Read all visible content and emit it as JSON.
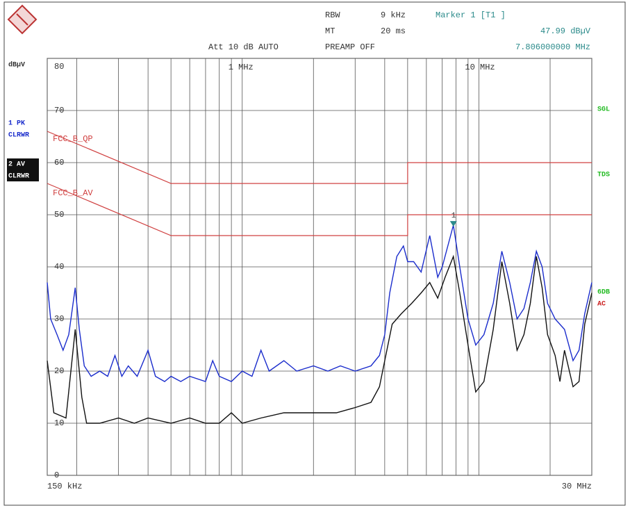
{
  "chart_data": {
    "type": "line",
    "header": {
      "rbw_label": "RBW",
      "rbw": "9 kHz",
      "mt_label": "MT",
      "mt": "20 ms",
      "att": "Att 10 dB AUTO",
      "preamp": "PREAMP OFF"
    },
    "marker": {
      "title": "Marker 1 [T1 ]",
      "number": "1",
      "x": 7.806,
      "y": 47.99,
      "y_label": "47.99 dBµV",
      "x_label": "7.806000000 MHz",
      "color": "#2a8a8a"
    },
    "y_unit": "dBµV",
    "side_labels": {
      "sgl": "SGL",
      "tds": "TDS",
      "db6": "6DB",
      "ac": "AC"
    },
    "trace_mode": "CLRWR",
    "xscale": "log",
    "xlim": [
      0.15,
      30
    ],
    "xticks": [
      {
        "value": 0.15,
        "label": "150 kHz"
      },
      {
        "value": 1,
        "label": "1 MHz"
      },
      {
        "value": 10,
        "label": "10 MHz"
      },
      {
        "value": 30,
        "label": "30 MHz"
      }
    ],
    "xgrid": [
      0.2,
      0.3,
      0.4,
      0.5,
      0.6,
      0.7,
      0.8,
      0.9,
      2,
      3,
      4,
      5,
      6,
      7,
      8,
      9,
      20
    ],
    "ylim": [
      0,
      80
    ],
    "yticks": [
      0,
      10,
      20,
      30,
      40,
      50,
      60,
      70,
      80
    ],
    "grid": true,
    "series": [
      {
        "name": "FCC_B_QP",
        "color": "#d04040",
        "x": [
          0.15,
          0.5,
          5,
          5,
          30
        ],
        "values": [
          66,
          56,
          56,
          60,
          60
        ]
      },
      {
        "name": "FCC_B_AV",
        "color": "#d04040",
        "x": [
          0.15,
          0.5,
          5,
          5,
          30
        ],
        "values": [
          56,
          46,
          46,
          50,
          50
        ]
      },
      {
        "name": "1 PK",
        "color": "#1a2ccc",
        "x": [
          0.15,
          0.155,
          0.165,
          0.175,
          0.185,
          0.197,
          0.205,
          0.215,
          0.23,
          0.25,
          0.27,
          0.29,
          0.31,
          0.33,
          0.36,
          0.4,
          0.43,
          0.47,
          0.5,
          0.55,
          0.6,
          0.7,
          0.75,
          0.8,
          0.9,
          1.0,
          1.1,
          1.2,
          1.3,
          1.5,
          1.7,
          2.0,
          2.3,
          2.6,
          3.0,
          3.5,
          3.8,
          4.0,
          4.2,
          4.5,
          4.8,
          5.0,
          5.3,
          5.7,
          6.2,
          6.7,
          7.0,
          7.8,
          8.3,
          9.0,
          9.7,
          10.5,
          11.5,
          12.5,
          13.5,
          14.5,
          15.5,
          16.5,
          17.5,
          18.5,
          19.5,
          21,
          23,
          25,
          26.5,
          28,
          30
        ],
        "values": [
          37,
          30,
          27,
          24,
          27,
          36,
          28,
          21,
          19,
          20,
          19,
          23,
          19,
          21,
          19,
          24,
          19,
          18,
          19,
          18,
          19,
          18,
          22,
          19,
          18,
          20,
          19,
          24,
          20,
          22,
          20,
          21,
          20,
          21,
          20,
          21,
          23,
          27,
          35,
          42,
          44,
          41,
          41,
          39,
          46,
          38,
          40,
          48,
          40,
          30,
          25,
          27,
          33,
          43,
          37,
          30,
          32,
          37,
          43,
          40,
          33,
          30,
          28,
          22,
          24,
          31,
          37
        ]
      },
      {
        "name": "2 AV",
        "color": "#111111",
        "x": [
          0.15,
          0.16,
          0.18,
          0.197,
          0.21,
          0.22,
          0.25,
          0.3,
          0.35,
          0.4,
          0.5,
          0.6,
          0.7,
          0.8,
          0.9,
          1.0,
          1.2,
          1.5,
          2.0,
          2.5,
          3.0,
          3.5,
          3.8,
          4.0,
          4.3,
          4.7,
          5.2,
          5.7,
          6.2,
          6.7,
          7.2,
          7.8,
          8.3,
          9.0,
          9.7,
          10.5,
          11.5,
          12.5,
          13.5,
          14.5,
          15.5,
          16.5,
          17.5,
          18.5,
          19.5,
          21,
          22,
          23,
          25,
          26.5,
          28,
          30
        ],
        "values": [
          22,
          12,
          11,
          28,
          15,
          10,
          10,
          11,
          10,
          11,
          10,
          11,
          10,
          10,
          12,
          10,
          11,
          12,
          12,
          12,
          13,
          14,
          17,
          22,
          29,
          31,
          33,
          35,
          37,
          34,
          38,
          42,
          35,
          25,
          16,
          18,
          28,
          41,
          33,
          24,
          27,
          33,
          42,
          36,
          27,
          23,
          18,
          24,
          17,
          18,
          29,
          35
        ]
      }
    ]
  }
}
